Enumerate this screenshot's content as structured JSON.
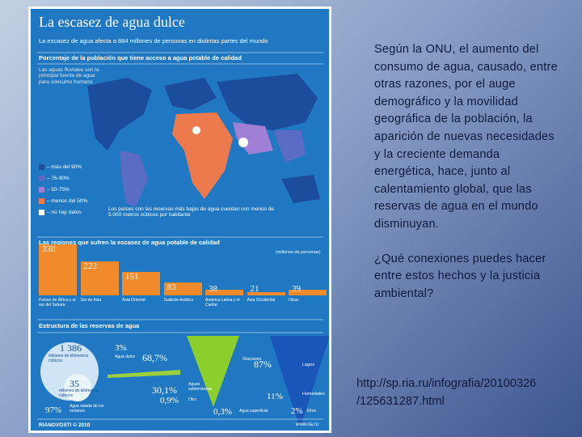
{
  "infographic": {
    "title": "La escasez de agua dulce",
    "subtitle": "La escasez de agua afecta a 884 millones de personas en distintas partes del mundo",
    "map_heading": "Porcentaje de la población que tiene acceso a agua potable de calidad",
    "map_note": "Las aguas fluviales son la principal fuente de agua para consumo humano",
    "legend": [
      {
        "label": "– más del 90%",
        "color": "#1b4d9c"
      },
      {
        "label": "– 76-90%",
        "color": "#5a6cc4"
      },
      {
        "label": "– 50-75%",
        "color": "#a07fd6"
      },
      {
        "label": "– menos del 50%",
        "color": "#ec7a4c"
      },
      {
        "label": "– no hay datos",
        "color": "#ffffff"
      }
    ],
    "map_footnote": "Los países con las reservas más bajas de agua cuentan con menos de 5.000 metros cúbicos por habitante",
    "regions": {
      "heading": "Las regiones que sufren la escasez de agua potable de calidad",
      "unit": "(millones de personas)",
      "color": "#f08a2a",
      "categories": [
        "Países de África y al sur del Sahara",
        "Sur de Asia",
        "Asia Oriental",
        "Sudeste Asiático",
        "América Latina y el Caribe",
        "Asia Occidental",
        "Otras"
      ],
      "values": [
        330,
        222,
        151,
        83,
        38,
        21,
        39
      ]
    },
    "reserves": {
      "heading": "Estructura de las reservas de agua",
      "total": "1 386",
      "total_unit": "millones de kilómetros cúbicos",
      "fresh": "35",
      "fresh_unit": "millones de kilómetros cúbicos",
      "salt_pct": "97%",
      "salt_label": "Agua salada de los océanos",
      "fresh_pct": "3%",
      "fresh_label": "Agua dulce",
      "glaciers_pct": "68,7%",
      "glaciers_label": "Glaciares",
      "ground_pct": "30,1%",
      "ground_label": "Aguas subterráneas",
      "other_pct": "0,9%",
      "other_label": "Otro",
      "surface_pct": "0,3%",
      "surface_label": "Agua superficial",
      "lakes_pct": "87%",
      "lakes_label": "Lagos",
      "wetlands_pct": "11%",
      "wetlands_label": "Humedales",
      "rivers_pct": "2%",
      "rivers_label": "Ríos"
    },
    "footer_left": "RIANOVOSTI © 2010",
    "footer_right": "www.ria.ru"
  },
  "text": {
    "paragraph1": "Según la ONU, el aumento del consumo de agua, causado, entre otras razones, por el auge demográfico y la movilidad geográfica de la población, la aparición de nuevas necesidades y la creciente demanda energética, hace, junto al calentamiento global, que las reservas de agua en el mundo disminuyan.",
    "paragraph2": "¿Qué conexiones puedes hacer entre estos hechos y la justicia ambiental?",
    "link": "http://sp.ria.ru/infografia/20100326 /125631287.html"
  }
}
